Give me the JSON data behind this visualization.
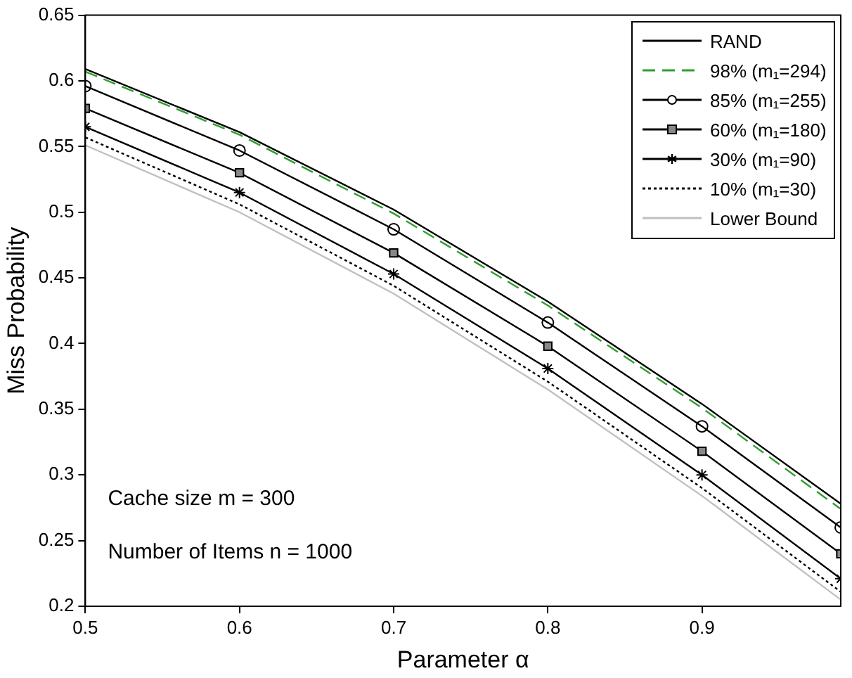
{
  "chart_data": {
    "type": "line",
    "xlabel": "Parameter α",
    "ylabel": "Miss Probability",
    "xlim": [
      0.5,
      0.99
    ],
    "xticks": [
      0.5,
      0.6,
      0.7,
      0.8,
      0.9
    ],
    "ylim": [
      0.2,
      0.65
    ],
    "yticks": [
      0.2,
      0.25,
      0.3,
      0.35,
      0.4,
      0.45,
      0.5,
      0.55,
      0.6,
      0.65
    ],
    "x": [
      0.5,
      0.6,
      0.7,
      0.8,
      0.9,
      0.99
    ],
    "grid": false,
    "legend": "top right",
    "annotations": [
      "Cache size m = 300",
      "Number of Items n = 1000"
    ],
    "series": [
      {
        "name": "RAND",
        "color": "#000000",
        "line_style": "solid",
        "marker": "none",
        "values": [
          0.609,
          0.561,
          0.502,
          0.432,
          0.354,
          0.278
        ]
      },
      {
        "name": "98% (m₁=294)",
        "color": "#2e9e2e",
        "line_style": "dashed",
        "marker": "none",
        "values": [
          0.607,
          0.559,
          0.499,
          0.429,
          0.351,
          0.274
        ]
      },
      {
        "name": "85% (m₁=255)",
        "color": "#000000",
        "line_style": "solid",
        "marker": "circle",
        "values": [
          0.596,
          0.547,
          0.487,
          0.416,
          0.337,
          0.26
        ]
      },
      {
        "name": "60% (m₁=180)",
        "color": "#000000",
        "line_style": "solid",
        "marker": "square",
        "values": [
          0.579,
          0.53,
          0.469,
          0.398,
          0.318,
          0.24
        ]
      },
      {
        "name": "30% (m₁=90)",
        "color": "#000000",
        "line_style": "solid",
        "marker": "cross",
        "values": [
          0.565,
          0.515,
          0.453,
          0.381,
          0.3,
          0.221
        ]
      },
      {
        "name": "10% (m₁=30)",
        "color": "#000000",
        "line_style": "dotted",
        "marker": "none",
        "values": [
          0.557,
          0.506,
          0.444,
          0.371,
          0.29,
          0.211
        ]
      },
      {
        "name": "Lower Bound",
        "color": "#c0c0c0",
        "line_style": "solid",
        "marker": "none",
        "values": [
          0.551,
          0.5,
          0.438,
          0.365,
          0.284,
          0.205
        ]
      }
    ]
  }
}
